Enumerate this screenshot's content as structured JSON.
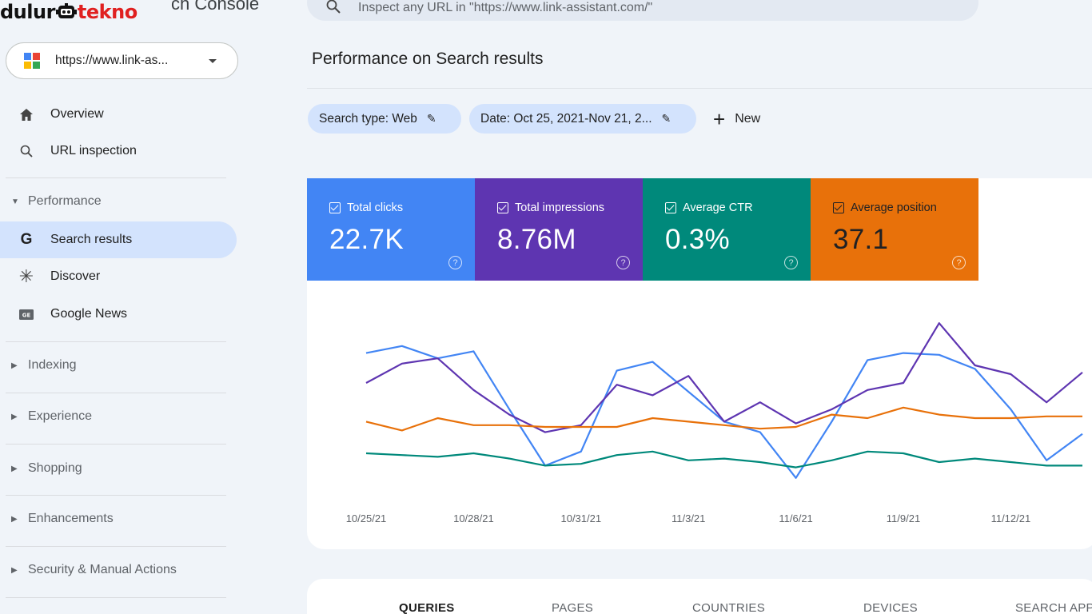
{
  "brand": {
    "part1": "dulur",
    "part2": "tekno",
    "console_word": "ch Console"
  },
  "search": {
    "text": "Inspect any URL in \"https://www.link-assistant.com/\"",
    "icon": "search-icon"
  },
  "property": {
    "url": "https://www.link-as...",
    "logo_colors": [
      "#4285f4",
      "#ea4335",
      "#fbbc04",
      "#34a853"
    ]
  },
  "nav": {
    "overview": "Overview",
    "url_inspection": "URL inspection",
    "performance": "Performance",
    "search_results": "Search results",
    "discover": "Discover",
    "google_news": "Google News",
    "indexing": "Indexing",
    "experience": "Experience",
    "shopping": "Shopping",
    "enhancements": "Enhancements",
    "security": "Security & Manual Actions"
  },
  "page": {
    "title": "Performance on Search results"
  },
  "filters": {
    "search_type": "Search type: Web",
    "date": "Date: Oct 25, 2021-Nov 21, 2...",
    "new": "New"
  },
  "metrics": [
    {
      "label": "Total clicks",
      "value": "22.7K",
      "color": "#4285f4"
    },
    {
      "label": "Total impressions",
      "value": "8.76M",
      "color": "#5e35b1"
    },
    {
      "label": "Average CTR",
      "value": "0.3%",
      "color": "#00897b"
    },
    {
      "label": "Average position",
      "value": "37.1",
      "color": "#e8710a"
    }
  ],
  "chart_data": {
    "type": "line",
    "x_tick_labels": [
      "10/25/21",
      "10/28/21",
      "10/31/21",
      "11/3/21",
      "11/6/21",
      "11/9/21",
      "11/12/21"
    ],
    "series": [
      {
        "name": "Total clicks",
        "color": "#4285f4",
        "values": [
          0.77,
          0.81,
          0.74,
          0.78,
          0.45,
          0.13,
          0.21,
          0.67,
          0.72,
          0.55,
          0.38,
          0.32,
          0.06,
          0.38,
          0.73,
          0.77,
          0.76,
          0.68,
          0.45,
          0.16,
          0.31
        ]
      },
      {
        "name": "Total impressions",
        "color": "#5e35b1",
        "values": [
          0.6,
          0.71,
          0.74,
          0.56,
          0.42,
          0.32,
          0.36,
          0.59,
          0.53,
          0.64,
          0.38,
          0.49,
          0.37,
          0.45,
          0.56,
          0.6,
          0.94,
          0.7,
          0.65,
          0.49,
          0.66
        ]
      },
      {
        "name": "Average position",
        "color": "#e8710a",
        "values": [
          0.38,
          0.33,
          0.4,
          0.36,
          0.36,
          0.35,
          0.35,
          0.35,
          0.4,
          0.38,
          0.36,
          0.34,
          0.35,
          0.42,
          0.4,
          0.46,
          0.42,
          0.4,
          0.4,
          0.41,
          0.41
        ]
      },
      {
        "name": "Average CTR",
        "color": "#00897b",
        "values": [
          0.2,
          0.19,
          0.18,
          0.2,
          0.17,
          0.13,
          0.14,
          0.19,
          0.21,
          0.16,
          0.17,
          0.15,
          0.12,
          0.16,
          0.21,
          0.2,
          0.15,
          0.17,
          0.15,
          0.13,
          0.13
        ]
      }
    ]
  },
  "tabs": [
    "QUERIES",
    "PAGES",
    "COUNTRIES",
    "DEVICES",
    "SEARCH APP"
  ]
}
